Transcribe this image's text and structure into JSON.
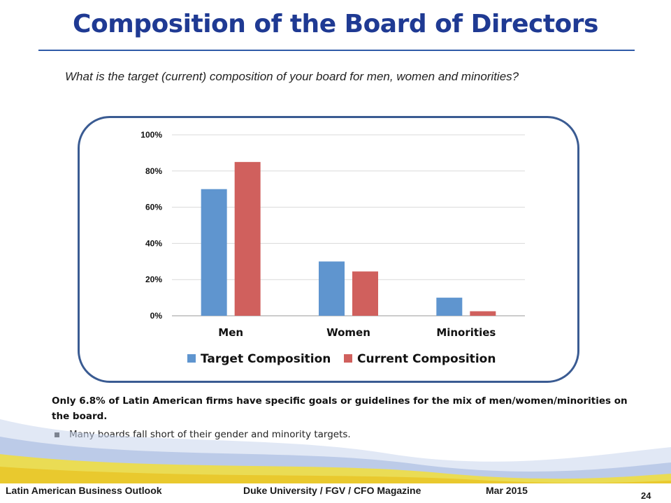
{
  "slide": {
    "title": "Composition of the Board of Directors",
    "question": "What is the target (current) composition of your board for men, women and minorities?",
    "summary": "Only 6.8% of Latin American firms have specific goals or guidelines for the mix of men/women/minorities on the board.",
    "bullet": "Many boards fall short of their gender and minority targets.",
    "footer": {
      "left": "Latin American Business Outlook",
      "center": "Duke University / FGV / CFO Magazine",
      "date": "Mar 2015",
      "page": "24"
    }
  },
  "colors": {
    "title": "#1f3a93",
    "frame": "#3a5b92",
    "target": "#5f95cf",
    "current": "#d0605d"
  },
  "chart_data": {
    "type": "bar",
    "categories": [
      "Men",
      "Women",
      "Minorities"
    ],
    "series": [
      {
        "name": "Target Composition",
        "values": [
          70,
          30,
          10
        ]
      },
      {
        "name": "Current Composition",
        "values": [
          85,
          24.5,
          2.5
        ]
      }
    ],
    "y_ticks": [
      "0%",
      "20%",
      "40%",
      "60%",
      "80%",
      "100%"
    ],
    "ylim": [
      0,
      100
    ],
    "grid": true,
    "legend": "bottom"
  }
}
